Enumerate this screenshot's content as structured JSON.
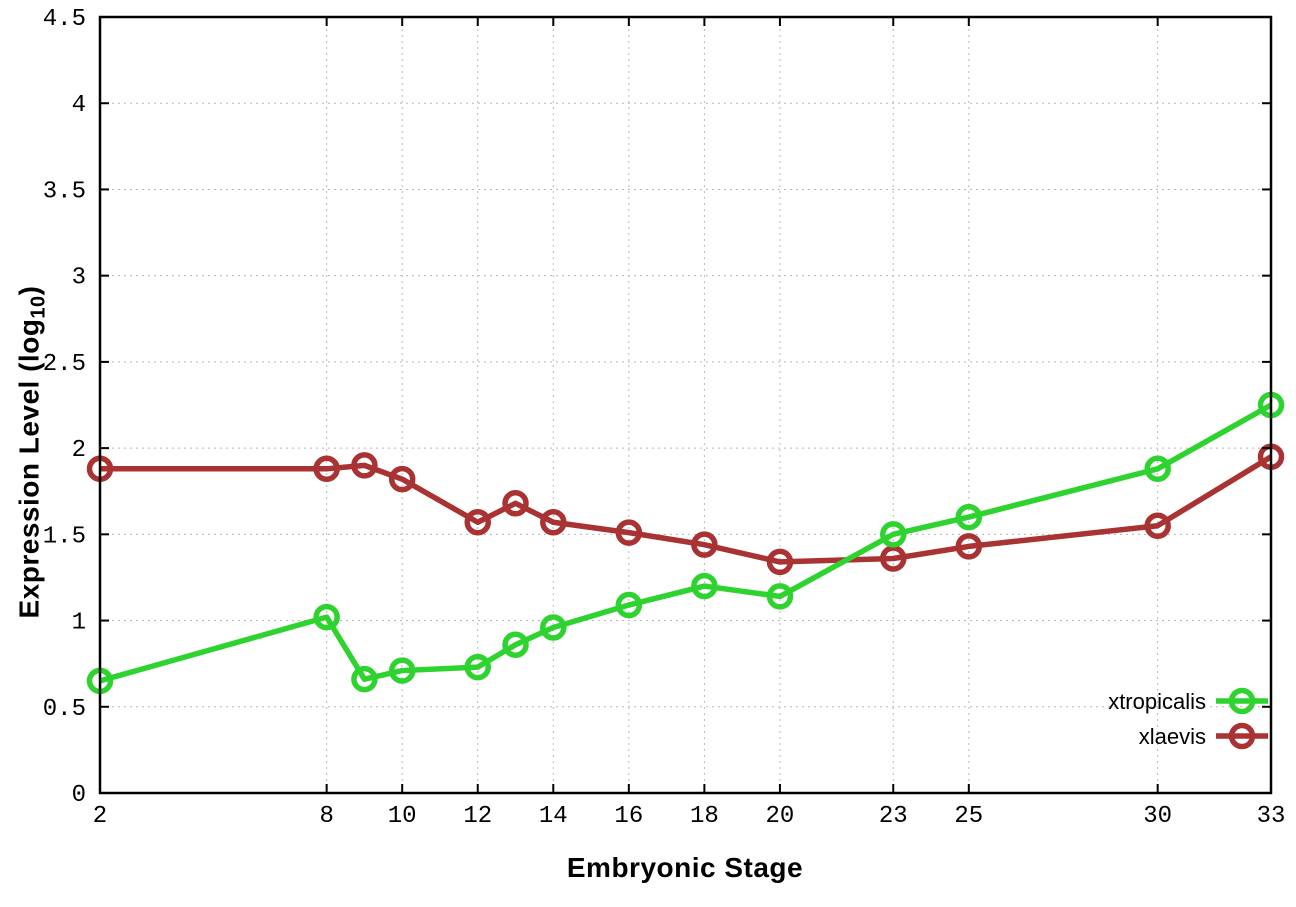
{
  "chart_data": {
    "type": "line",
    "title": "",
    "xlabel": "Embryonic Stage",
    "ylabel": {
      "text": "Expression Level (log",
      "sub": "10",
      "suffix": ")"
    },
    "xlim": [
      2,
      33
    ],
    "ylim": [
      0,
      4.5
    ],
    "x_ticks": [
      2,
      8,
      10,
      12,
      14,
      16,
      18,
      20,
      23,
      25,
      30,
      33
    ],
    "y_ticks": [
      0,
      0.5,
      1,
      1.5,
      2,
      2.5,
      3,
      3.5,
      4,
      4.5
    ],
    "grid": true,
    "legend_position": "inside-bottom-right",
    "x": [
      2,
      8,
      9,
      10,
      12,
      13,
      14,
      16,
      18,
      20,
      23,
      25,
      30,
      33
    ],
    "series": [
      {
        "name": "xtropicalis",
        "color": "#2fd32f",
        "values": [
          0.65,
          1.02,
          0.66,
          0.71,
          0.73,
          0.86,
          0.96,
          1.09,
          1.2,
          1.14,
          1.5,
          1.6,
          1.88,
          2.25
        ]
      },
      {
        "name": "xlaevis",
        "color": "#a93232",
        "values": [
          1.88,
          1.88,
          1.9,
          1.82,
          1.57,
          1.68,
          1.57,
          1.51,
          1.44,
          1.34,
          1.36,
          1.43,
          1.55,
          1.95
        ]
      }
    ]
  },
  "colors": {
    "background": "#ffffff",
    "grid": "#b8b8b8",
    "axis": "#000000",
    "text": "#000000"
  }
}
